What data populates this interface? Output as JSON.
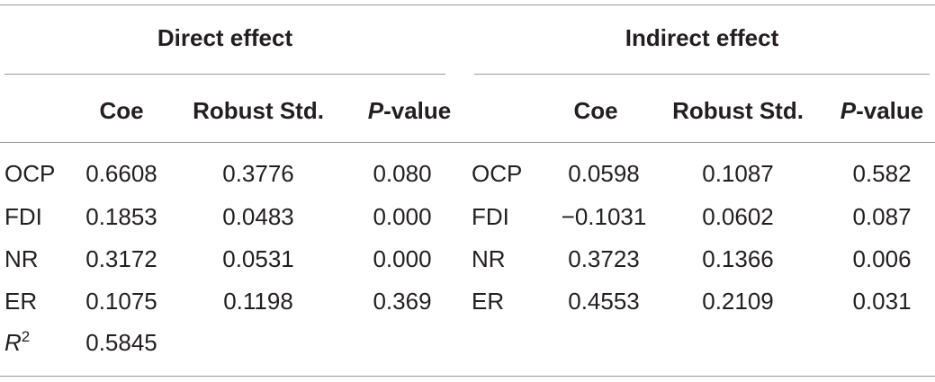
{
  "table": {
    "groups": [
      "Direct effect",
      "Indirect effect"
    ],
    "columns": [
      "Coe",
      "Robust Std.",
      "P-value",
      "Coe",
      "Robust Std.",
      "P-value"
    ],
    "rows": [
      [
        "OCP",
        "0.6608",
        "0.3776",
        "0.080",
        "OCP",
        "0.0598",
        "0.1087",
        "0.582"
      ],
      [
        "FDI",
        "0.1853",
        "0.0483",
        "0.000",
        "FDI",
        "−0.1031",
        "0.0602",
        "0.087"
      ],
      [
        "NR",
        "0.3172",
        "0.0531",
        "0.000",
        "NR",
        "0.3723",
        "0.1366",
        "0.006"
      ],
      [
        "ER",
        "0.1075",
        "0.1198",
        "0.369",
        "ER",
        "0.4553",
        "0.2109",
        "0.031"
      ],
      [
        "R2",
        "0.5845"
      ]
    ]
  }
}
